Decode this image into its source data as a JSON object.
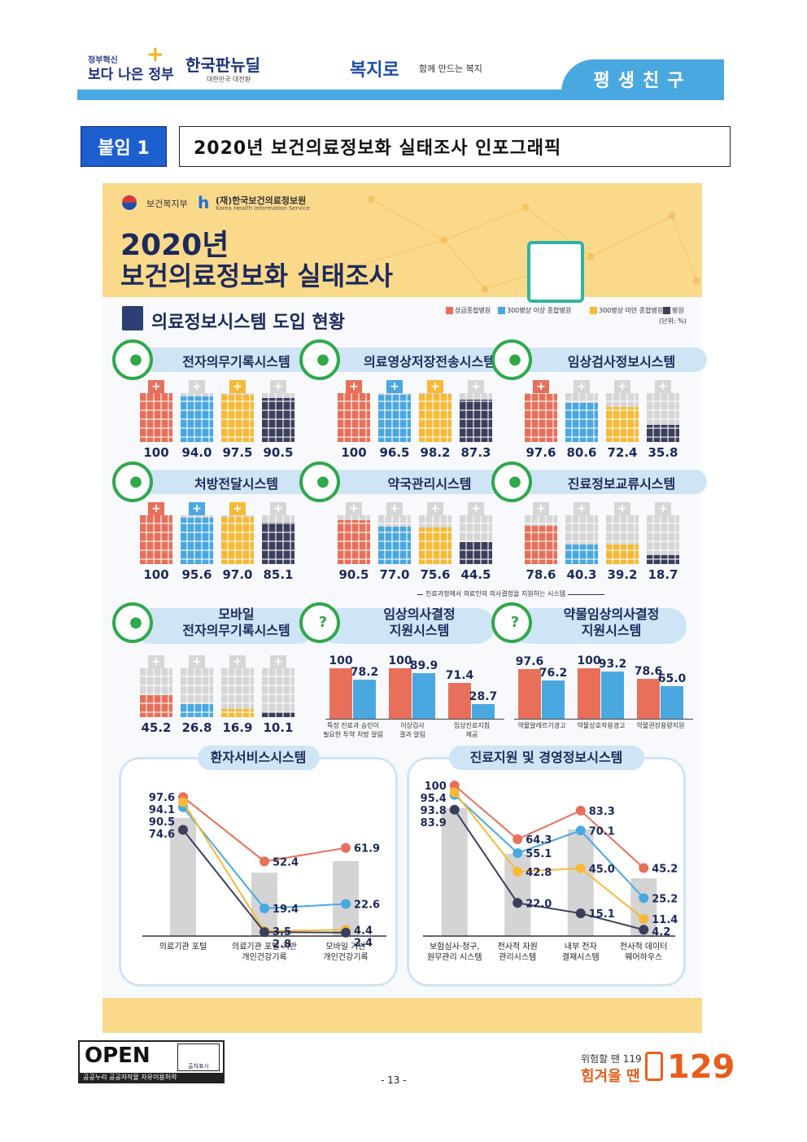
{
  "header": {
    "gov_small": "정부혁신",
    "gov_big": "보다 나은 정부",
    "newdeal": "한국판뉴딜",
    "newdeal_sub": "대한민국 대전환",
    "bokji": "복지로",
    "bokji_sub": "함께 만드는 복지",
    "tab": "평생친구"
  },
  "annex": {
    "label": "붙임 1",
    "title": "2020년 보건의료정보화 실태조사 인포그래픽"
  },
  "banner": {
    "org1": "보건복지부",
    "org2": "(재)한국보건의료정보원",
    "org2_en": "Korea Health Information Service",
    "title_line1": "2020년",
    "title_line2": "보건의료정보화 실태조사"
  },
  "section": {
    "title": "의료정보시스템 도입 현황",
    "unit": "(단위: %)"
  },
  "legend": [
    {
      "label": "상급종합병원",
      "color": "#e8705a"
    },
    {
      "label": "300병상 이상 종합병원",
      "color": "#4aa8e1"
    },
    {
      "label": "300병상 미만 종합병원",
      "color": "#f7b936"
    },
    {
      "label": "병원",
      "color": "#3b3f5c"
    }
  ],
  "colors": {
    "tier1": "#e8705a",
    "tier2": "#4aa8e1",
    "tier3": "#f7b936",
    "tier4": "#3b3f5c"
  },
  "systems": [
    {
      "name": "전자의무기록시스템",
      "icon": "monitor-icon",
      "values": [
        "100",
        "94.0",
        "97.5",
        "90.5"
      ]
    },
    {
      "name": "의료영상저장전송시스템",
      "icon": "lungs-icon",
      "values": [
        "100",
        "96.5",
        "98.2",
        "87.3"
      ]
    },
    {
      "name": "임상검사정보시스템",
      "icon": "patient-icon",
      "values": [
        "97.6",
        "80.6",
        "72.4",
        "35.8"
      ]
    },
    {
      "name": "처방전달시스템",
      "icon": "prescription-icon",
      "values": [
        "100",
        "95.6",
        "97.0",
        "85.1"
      ]
    },
    {
      "name": "약국관리시스템",
      "icon": "pill-icon",
      "values": [
        "90.5",
        "77.0",
        "75.6",
        "44.5"
      ]
    },
    {
      "name": "진료정보교류시스템",
      "icon": "exchange-icon",
      "values": [
        "78.6",
        "40.3",
        "39.2",
        "18.7"
      ]
    },
    {
      "name": "모바일 전자의무기록시스템",
      "name_line1": "모바일",
      "name_line2": "전자의무기록시스템",
      "icon": "mobile-icon",
      "values": [
        "45.2",
        "26.8",
        "16.9",
        "10.1"
      ]
    }
  ],
  "cds": {
    "bracket_note": "진료과정에서 의료인의 의사결정을 지원하는 시스템",
    "clinical": {
      "title_line1": "임상의사결정",
      "title_line2": "지원시스템",
      "icon": "doctor-question-icon",
      "items": [
        {
          "label_line1": "특정 진료과 승인이",
          "label_line2": "필요한 투약 처방 알림",
          "values": [
            "100",
            "78.2"
          ]
        },
        {
          "label_line1": "이상검사",
          "label_line2": "결과 알림",
          "values": [
            "100",
            "89.9"
          ]
        },
        {
          "label_line1": "임상진료지침",
          "label_line2": "제공",
          "values": [
            "71.4",
            "28.7"
          ]
        }
      ]
    },
    "drug": {
      "title_line1": "약물임상의사결정",
      "title_line2": "지원시스템",
      "icon": "syringe-icon",
      "items": [
        {
          "label_line1": "약물알레르기경고",
          "label_line2": "",
          "values": [
            "97.6",
            "76.2"
          ]
        },
        {
          "label_line1": "약물상호작용경고",
          "label_line2": "",
          "values": [
            "100",
            "93.2"
          ]
        },
        {
          "label_line1": "약물권장용량지원",
          "label_line2": "",
          "values": [
            "78.6",
            "65.0"
          ]
        }
      ]
    }
  },
  "chart_data": [
    {
      "type": "line",
      "title": "환자서비스시스템",
      "categories": [
        "의료기관 포털",
        "의료기관 포털 기반 개인건강기록",
        "모바일 기반 개인건강기록"
      ],
      "category_lines": [
        [
          "의료기관 포털"
        ],
        [
          "의료기관 포털 기반",
          "개인건강기록"
        ],
        [
          "모바일 기반",
          "개인건강기록"
        ]
      ],
      "series": [
        {
          "name": "상급종합병원",
          "color": "#e8705a",
          "values": [
            97.6,
            52.4,
            61.9
          ],
          "labels": [
            "97.6",
            "52.4",
            "61.9"
          ]
        },
        {
          "name": "300병상 이상 종합병원",
          "color": "#4aa8e1",
          "values": [
            90.5,
            19.4,
            22.6
          ],
          "labels": [
            "90.5",
            "19.4",
            "22.6"
          ]
        },
        {
          "name": "300병상 미만 종합병원",
          "color": "#f7b936",
          "values": [
            94.1,
            3.5,
            4.4
          ],
          "labels": [
            "94.1",
            "3.5",
            "4.4"
          ]
        },
        {
          "name": "병원",
          "color": "#3b3f5c",
          "values": [
            74.6,
            2.8,
            2.4
          ],
          "labels": [
            "74.6",
            "2.8",
            "2.4"
          ]
        }
      ],
      "ylim": [
        0,
        100
      ]
    },
    {
      "type": "line",
      "title": "진료지원 및 경영정보시스템",
      "categories": [
        "보험심사·청구, 원무관리 시스템",
        "전사적 자원 관리시스템",
        "내부 전자 결재시스템",
        "전사적 데이터 웨어하우스"
      ],
      "category_lines": [
        [
          "보험심사·청구,",
          "원무관리 시스템"
        ],
        [
          "전사적 자원",
          "관리시스템"
        ],
        [
          "내부 전자",
          "결재시스템"
        ],
        [
          "전사적 데이터",
          "웨어하우스"
        ]
      ],
      "series": [
        {
          "name": "상급종합병원",
          "color": "#e8705a",
          "values": [
            100,
            64.3,
            83.3,
            45.2
          ],
          "labels": [
            "100",
            "64.3",
            "83.3",
            "45.2"
          ]
        },
        {
          "name": "300병상 이상 종합병원",
          "color": "#4aa8e1",
          "values": [
            93.8,
            55.1,
            70.1,
            25.2
          ],
          "labels": [
            "93.8",
            "55.1",
            "70.1",
            "25.2"
          ]
        },
        {
          "name": "300병상 미만 종합병원",
          "color": "#f7b936",
          "values": [
            95.4,
            42.8,
            45.0,
            11.4
          ],
          "labels": [
            "95.4",
            "42.8",
            "45.0",
            "11.4"
          ]
        },
        {
          "name": "병원",
          "color": "#3b3f5c",
          "values": [
            83.9,
            22.0,
            15.1,
            4.2
          ],
          "labels": [
            "83.9",
            "22.0",
            "15.1",
            "4.2"
          ]
        }
      ],
      "ylim": [
        0,
        100
      ]
    }
  ],
  "footer": {
    "open_text": "OPEN",
    "open_sub": "공공누리  공공저작물 자유이용허락",
    "open_badge": "출처표시",
    "page": "- 13 -",
    "hotline_small": "위험할 땐 119",
    "hotline_big": "힘겨울 땐",
    "hotline_number": "129"
  }
}
